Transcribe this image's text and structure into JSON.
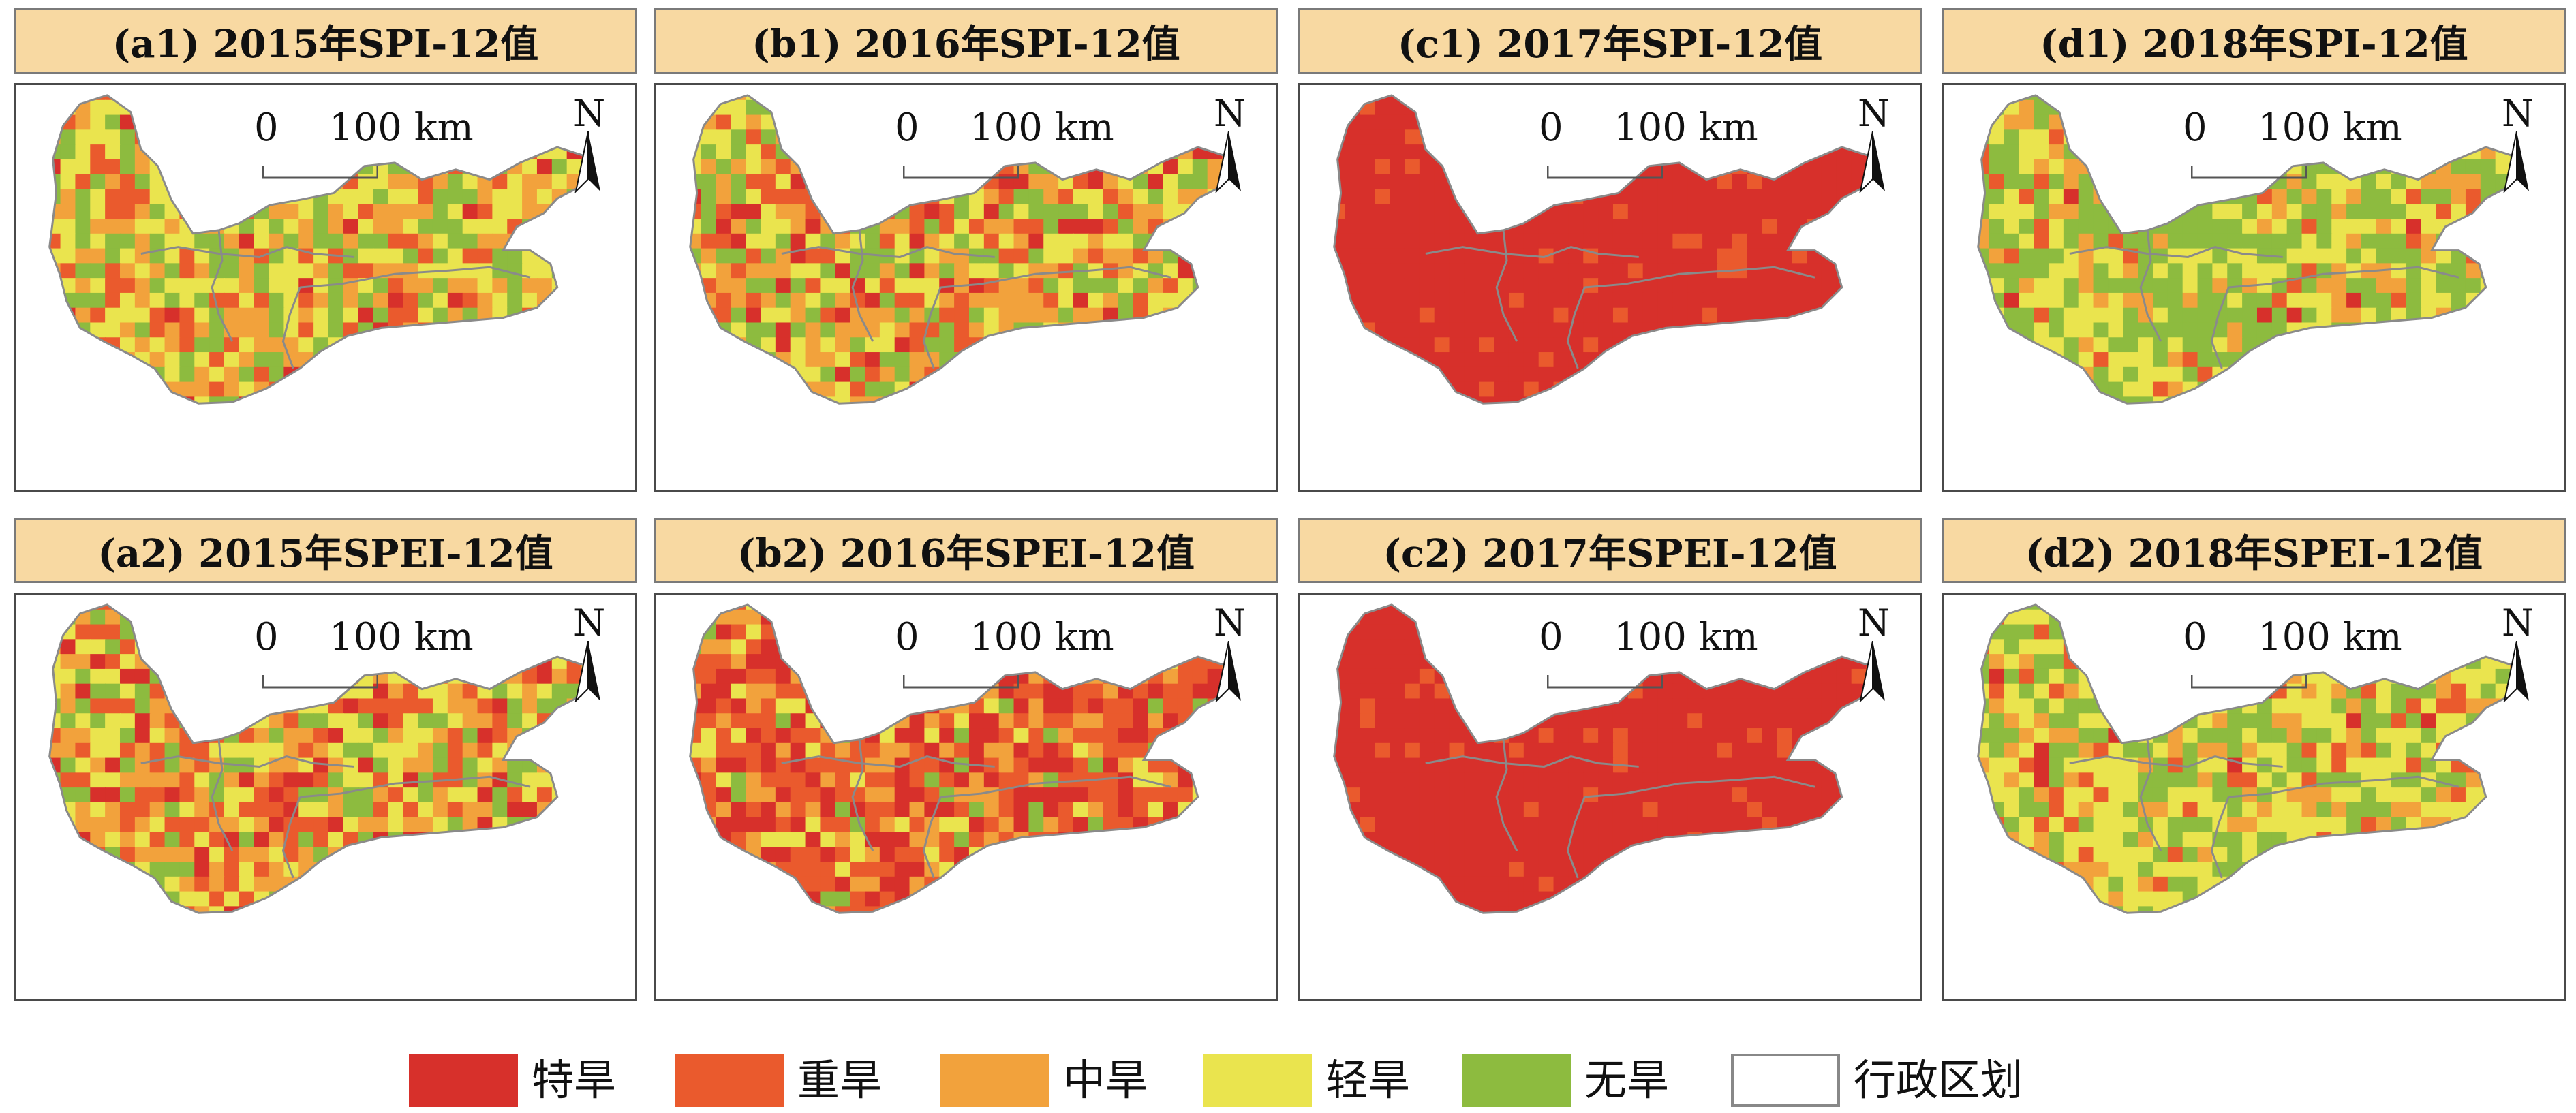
{
  "panels": [
    {
      "id": "a1",
      "title": "(a1) 2015年SPI-12值",
      "pattern": "mixed-1"
    },
    {
      "id": "b1",
      "title": "(b1) 2016年SPI-12值",
      "pattern": "mixed-2"
    },
    {
      "id": "c1",
      "title": "(c1) 2017年SPI-12值",
      "pattern": "extreme"
    },
    {
      "id": "d1",
      "title": "(d1) 2018年SPI-12值",
      "pattern": "wet"
    },
    {
      "id": "a2",
      "title": "(a2) 2015年SPEI-12值",
      "pattern": "mixed-3"
    },
    {
      "id": "b2",
      "title": "(b2) 2016年SPEI-12值",
      "pattern": "severe"
    },
    {
      "id": "c2",
      "title": "(c2) 2017年SPEI-12值",
      "pattern": "extreme"
    },
    {
      "id": "d2",
      "title": "(d2) 2018年SPEI-12值",
      "pattern": "mixed-light"
    }
  ],
  "scalebar": {
    "zero": "0",
    "distance": "100 km"
  },
  "north": {
    "label": "N"
  },
  "legend": [
    {
      "label": "特旱",
      "color": "#d7302b"
    },
    {
      "label": "重旱",
      "color": "#ea5a2d"
    },
    {
      "label": "中旱",
      "color": "#f2a23c"
    },
    {
      "label": "轻旱",
      "color": "#eae44e"
    },
    {
      "label": "无旱",
      "color": "#8dbb3f"
    },
    {
      "label": "行政区划",
      "color": "#ffffff",
      "border": "#888888"
    }
  ]
}
